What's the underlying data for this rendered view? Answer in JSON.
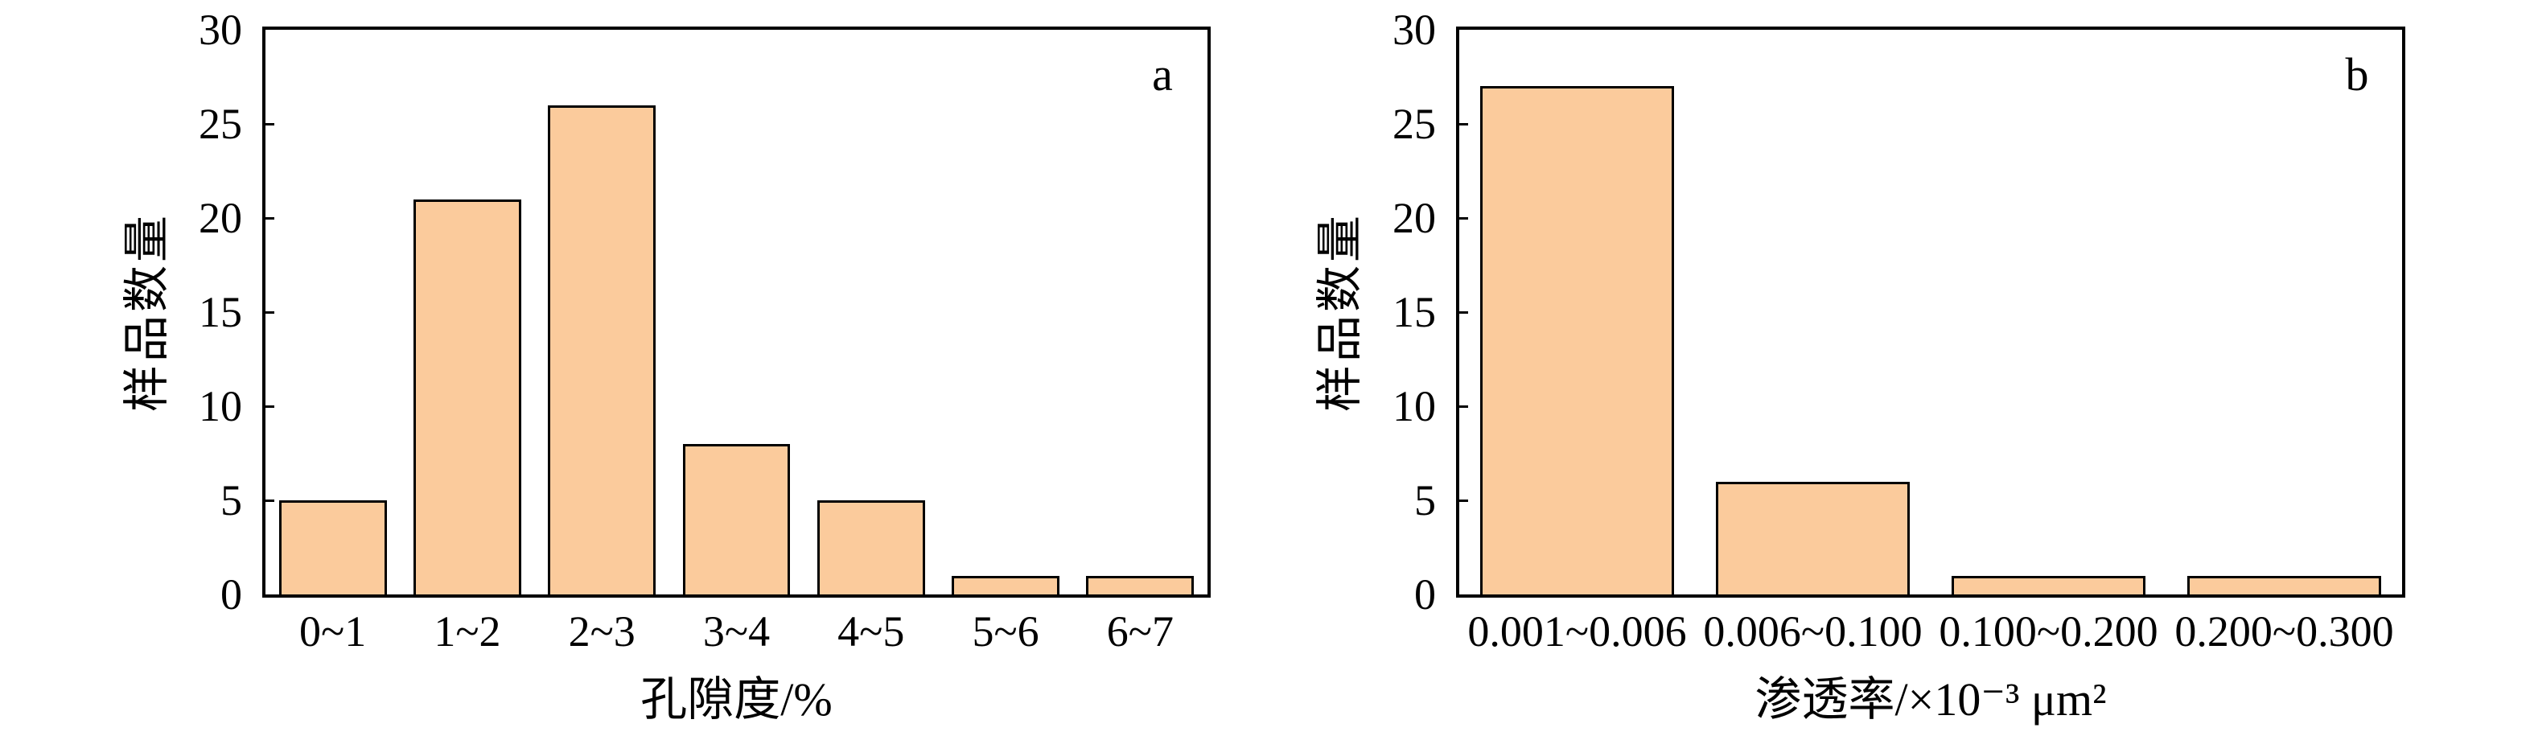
{
  "figure": {
    "background": "#ffffff",
    "bar_fill": "#FBCB9C",
    "bar_stroke": "#000000",
    "axis_color": "#000000"
  },
  "chart_data": [
    {
      "type": "bar",
      "panel_label": "a",
      "categories": [
        "0~1",
        "1~2",
        "2~3",
        "3~4",
        "4~5",
        "5~6",
        "6~7"
      ],
      "values": [
        5,
        21,
        26,
        8,
        5,
        1,
        1
      ],
      "xlabel": "孔隙度/%",
      "ylabel": "样品数量",
      "ylim": [
        0,
        30
      ],
      "yticks": [
        0,
        5,
        10,
        15,
        20,
        25,
        30
      ],
      "grid": false,
      "legend": "none"
    },
    {
      "type": "bar",
      "panel_label": "b",
      "categories": [
        "0.001~0.006",
        "0.006~0.100",
        "0.100~0.200",
        "0.200~0.300"
      ],
      "values": [
        27,
        6,
        1,
        1
      ],
      "xlabel": "渗透率/×10⁻³ μm²",
      "ylabel": "样品数量",
      "ylim": [
        0,
        30
      ],
      "yticks": [
        0,
        5,
        10,
        15,
        20,
        25,
        30
      ],
      "grid": false,
      "legend": "none"
    }
  ]
}
